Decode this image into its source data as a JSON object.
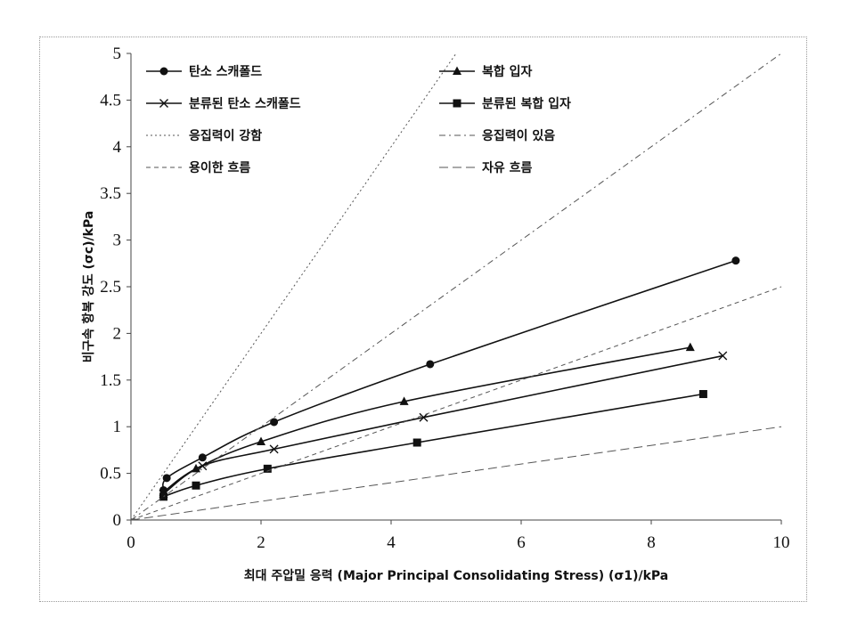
{
  "chart_data": {
    "type": "line",
    "xlabel": "최대 주압밀 응력 (Major Principal Consolidating Stress) (σ1)/kPa",
    "ylabel": "비구속 항복 강도 (σc)/kPa",
    "xlim": [
      0,
      10
    ],
    "ylim": [
      0,
      5
    ],
    "xticks": [
      "0",
      "2",
      "4",
      "6",
      "8",
      "10"
    ],
    "yticks": [
      "0",
      "0.5",
      "1",
      "1.5",
      "2",
      "2.5",
      "3",
      "3.5",
      "4",
      "4.5",
      "5"
    ],
    "grid": false,
    "legend_position": "top",
    "series": [
      {
        "name": "탄소 스캐폴드",
        "marker": "circle",
        "style": "solid",
        "x": [
          0.5,
          0.55,
          1.1,
          2.2,
          4.6,
          9.3
        ],
        "y": [
          0.32,
          0.45,
          0.67,
          1.05,
          1.67,
          2.78
        ]
      },
      {
        "name": "복합 입자",
        "marker": "triangle",
        "style": "solid",
        "x": [
          0.5,
          1.0,
          2.0,
          4.2,
          8.6
        ],
        "y": [
          0.3,
          0.55,
          0.84,
          1.27,
          1.85
        ]
      },
      {
        "name": "분류된 탄소 스캐폴드",
        "marker": "x",
        "style": "solid",
        "x": [
          0.5,
          1.1,
          2.2,
          4.5,
          9.1
        ],
        "y": [
          0.28,
          0.58,
          0.76,
          1.1,
          1.76
        ]
      },
      {
        "name": "분류된 복합 입자",
        "marker": "square",
        "style": "solid",
        "x": [
          0.5,
          1.0,
          2.1,
          4.4,
          8.8
        ],
        "y": [
          0.25,
          0.37,
          0.55,
          0.83,
          1.35
        ]
      },
      {
        "name": "응집력이 강함",
        "marker": "none",
        "style": "dotted",
        "x": [
          0,
          5
        ],
        "y": [
          0,
          5
        ]
      },
      {
        "name": "응집력이 있음",
        "marker": "none",
        "style": "dashdot",
        "x": [
          0,
          10
        ],
        "y": [
          0,
          5
        ]
      },
      {
        "name": "용이한 흐름",
        "marker": "none",
        "style": "dashed",
        "x": [
          0,
          10
        ],
        "y": [
          0,
          2.5
        ]
      },
      {
        "name": "자유 흐름",
        "marker": "none",
        "style": "longdash",
        "x": [
          0,
          10
        ],
        "y": [
          0,
          1
        ]
      }
    ]
  }
}
